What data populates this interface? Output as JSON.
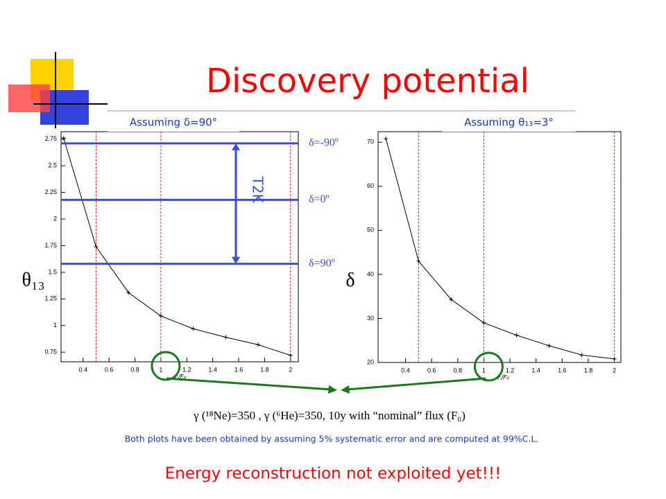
{
  "title": "Discovery potential",
  "caption": "γ (¹⁸Ne)=350 , γ (⁶He)=350, 10y with “nominal” flux (F₀)",
  "note": "Both plots have been obtained by assuming 5% systematic error and are computed at 99%C.L.",
  "conclusion": "Energy reconstruction not exploited yet!!!",
  "chart_data": [
    {
      "type": "line",
      "subtitle": "Assuming δ=90°",
      "x_label": "F/F₀",
      "y_label": "θ₁₃",
      "x": [
        0.25,
        0.5,
        0.75,
        1,
        1.25,
        1.5,
        1.75,
        2
      ],
      "series": [
        {
          "color": "#000000",
          "values": [
            2.76,
            1.74,
            1.31,
            1.09,
            0.97,
            0.89,
            0.82,
            0.72
          ]
        }
      ],
      "xlim": [
        0.23,
        2.06
      ],
      "ylim": [
        0.66,
        2.82
      ],
      "xticks": [
        0.4,
        0.6,
        0.8,
        1,
        1.2,
        1.4,
        1.6,
        1.8,
        2
      ],
      "yticks": [
        0.75,
        1,
        1.25,
        1.5,
        1.75,
        2,
        2.25,
        2.5,
        2.75
      ],
      "x_markers": [
        0.5,
        1,
        2
      ],
      "marker_color": "#e02020",
      "highlight_x": 1,
      "hlines": [
        {
          "value": 2.71,
          "label": "δ=-90º"
        },
        {
          "value": 2.18,
          "label": "δ=0º"
        },
        {
          "value": 1.58,
          "label": "δ=90º"
        }
      ],
      "hline_color": "#3a4fd0",
      "annotation": "T2K"
    },
    {
      "type": "line",
      "subtitle": "Assuming θ₁₃=3°",
      "x_label": "F/F₀",
      "y_label": "δ",
      "x": [
        0.25,
        0.5,
        0.75,
        1,
        1.25,
        1.5,
        1.75,
        2
      ],
      "series": [
        {
          "color": "#000000",
          "values": [
            70.8,
            43,
            34.3,
            29,
            26.2,
            23.8,
            21.7,
            20.8
          ]
        }
      ],
      "xlim": [
        0.19,
        2.05
      ],
      "ylim": [
        20,
        72.4
      ],
      "xticks": [
        0.4,
        0.6,
        0.8,
        1,
        1.2,
        1.4,
        1.6,
        1.8,
        2
      ],
      "yticks": [
        20,
        30,
        40,
        50,
        60,
        70
      ],
      "x_markers": [
        0.5,
        1,
        2
      ],
      "marker_color": "#e02020",
      "highlight_x": 1
    }
  ]
}
